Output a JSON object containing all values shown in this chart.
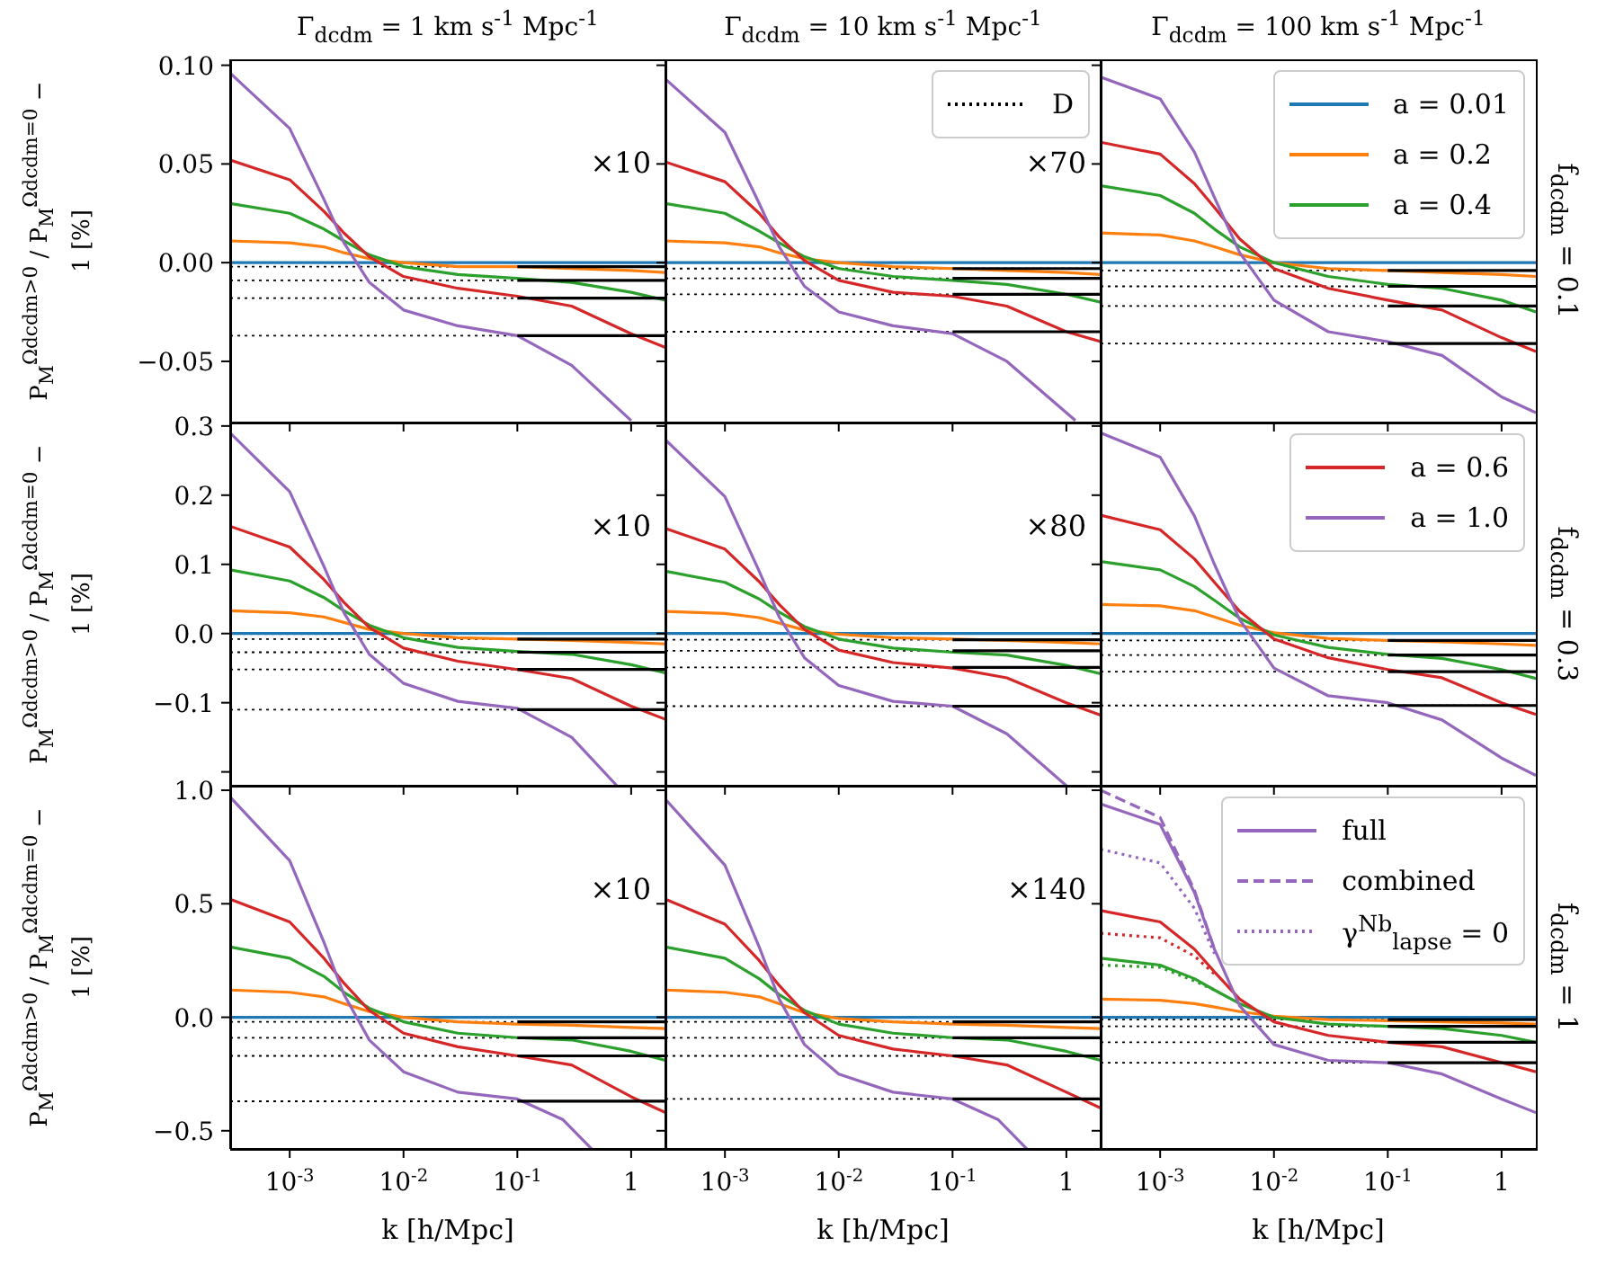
{
  "chart_data": [
    {
      "type": "line",
      "title": "Γ$_{dcdm}$ = 1 km s$^{-1}$ Mpc$^{-1}$",
      "ylabel": "P$_{M}$$^{Ωdcdm>0}$ / P$_{M}$$^{Ωdcdm=0}$ − 1 [%]",
      "log": "x",
      "marker": "none",
      "tick_labels": "y",
      "annotations": [
        "×10"
      ],
      "xlim": [
        0.0003,
        2
      ],
      "xticks": [
        {
          "value": 0.001,
          "label": null
        },
        {
          "value": 0.01,
          "label": null
        },
        {
          "value": 0.1,
          "label": null
        },
        {
          "value": 1,
          "label": null
        }
      ],
      "ylim": [
        -0.081,
        0.103
      ],
      "yticks": [
        {
          "value": -0.05,
          "label": "−0.05"
        },
        {
          "value": 0,
          "label": "0.00"
        },
        {
          "value": 0.05,
          "label": "0.05"
        },
        {
          "value": 0.1,
          "label": "0.10"
        }
      ],
      "x": [
        0.0003,
        0.001,
        0.002,
        0.003,
        0.005,
        0.01,
        0.03,
        0.1,
        0.3,
        1,
        2
      ],
      "series": [
        {
          "color": "#1f77b4",
          "values": [
            0,
            0,
            0,
            0,
            0,
            0,
            0,
            0,
            0,
            0,
            0
          ]
        },
        {
          "color": "#ff7f0e",
          "values": [
            0.011,
            0.01,
            0.008,
            0.005,
            0.002,
            0,
            -0.002,
            -0.002,
            -0.003,
            -0.004,
            -0.005
          ]
        },
        {
          "color": "#2ca02c",
          "values": [
            0.03,
            0.025,
            0.017,
            0.011,
            0.004,
            -0.002,
            -0.006,
            -0.008,
            -0.01,
            -0.015,
            -0.019
          ]
        },
        {
          "color": "#d62728",
          "values": [
            0.052,
            0.042,
            0.026,
            0.015,
            0.003,
            -0.007,
            -0.013,
            -0.017,
            -0.022,
            -0.036,
            -0.043
          ]
        },
        {
          "color": "#9467bd",
          "x": [
            0.0003,
            0.001,
            0.002,
            0.003,
            0.005,
            0.01,
            0.03,
            0.1,
            0.3,
            1
          ],
          "values": [
            0.096,
            0.068,
            0.032,
            0.01,
            -0.01,
            -0.024,
            -0.032,
            -0.037,
            -0.052,
            -0.08
          ]
        },
        {
          "color": "#000000",
          "x": [
            0.1,
            2
          ],
          "values": [
            -0.002,
            -0.002
          ]
        },
        {
          "color": "#000000",
          "x": [
            0.1,
            2
          ],
          "values": [
            -0.009,
            -0.009
          ]
        },
        {
          "color": "#000000",
          "x": [
            0.1,
            2
          ],
          "values": [
            -0.018,
            -0.018
          ]
        },
        {
          "color": "#000000",
          "x": [
            0.1,
            2
          ],
          "values": [
            -0.037,
            -0.037
          ]
        }
      ],
      "ref_lines": [
        {
          "axis": "y",
          "value": -0.002,
          "color": "#000000",
          "line_style": "dotted"
        },
        {
          "axis": "y",
          "value": -0.009,
          "color": "#000000",
          "line_style": "dotted"
        },
        {
          "axis": "y",
          "value": -0.018,
          "color": "#000000",
          "line_style": "dotted"
        },
        {
          "axis": "y",
          "value": -0.037,
          "color": "#000000",
          "line_style": "dotted"
        }
      ]
    },
    {
      "type": "line",
      "title": "Γ$_{dcdm}$ = 10 km s$^{-1}$ Mpc$^{-1}$",
      "log": "x",
      "marker": "none",
      "tick_labels": false,
      "annotations": [
        "×70"
      ],
      "legend": "top right",
      "xlim": [
        0.0003,
        2
      ],
      "xticks": [
        {
          "value": 0.001,
          "label": null
        },
        {
          "value": 0.01,
          "label": null
        },
        {
          "value": 0.1,
          "label": null
        },
        {
          "value": 1,
          "label": null
        }
      ],
      "ylim": [
        -0.081,
        0.103
      ],
      "yticks": [
        {
          "value": -0.05,
          "label": null
        },
        {
          "value": 0,
          "label": null
        },
        {
          "value": 0.05,
          "label": null
        },
        {
          "value": 0.1,
          "label": null
        }
      ],
      "x": [
        0.0003,
        0.001,
        0.002,
        0.003,
        0.005,
        0.01,
        0.03,
        0.1,
        0.3,
        1,
        2
      ],
      "series": [
        {
          "color": "#1f77b4",
          "values": [
            0,
            0,
            0,
            0,
            0,
            0,
            0,
            0,
            0,
            0,
            0
          ]
        },
        {
          "color": "#ff7f0e",
          "values": [
            0.011,
            0.01,
            0.008,
            0.005,
            0.002,
            0,
            -0.002,
            -0.003,
            -0.004,
            -0.005,
            -0.006
          ]
        },
        {
          "color": "#2ca02c",
          "values": [
            0.03,
            0.025,
            0.016,
            0.01,
            0.003,
            -0.003,
            -0.007,
            -0.009,
            -0.011,
            -0.016,
            -0.02
          ]
        },
        {
          "color": "#d62728",
          "values": [
            0.051,
            0.041,
            0.025,
            0.013,
            0.001,
            -0.009,
            -0.015,
            -0.017,
            -0.022,
            -0.035,
            -0.04
          ]
        },
        {
          "color": "#9467bd",
          "x": [
            0.0003,
            0.001,
            0.002,
            0.003,
            0.005,
            0.01,
            0.03,
            0.1,
            0.3,
            1.2
          ],
          "values": [
            0.093,
            0.066,
            0.03,
            0.008,
            -0.012,
            -0.025,
            -0.032,
            -0.036,
            -0.05,
            -0.08
          ]
        },
        {
          "color": "#000000",
          "x": [
            0.1,
            2
          ],
          "values": [
            -0.003,
            -0.003
          ]
        },
        {
          "color": "#000000",
          "x": [
            0.1,
            2
          ],
          "values": [
            -0.008,
            -0.008
          ]
        },
        {
          "color": "#000000",
          "x": [
            0.1,
            2
          ],
          "values": [
            -0.016,
            -0.016
          ]
        },
        {
          "color": "#000000",
          "x": [
            0.1,
            2
          ],
          "values": [
            -0.035,
            -0.035
          ]
        }
      ],
      "ref_lines": [
        {
          "axis": "y",
          "value": -0.003,
          "color": "#000000",
          "line_style": "dotted",
          "label": "D"
        },
        {
          "axis": "y",
          "value": -0.008,
          "color": "#000000",
          "line_style": "dotted"
        },
        {
          "axis": "y",
          "value": -0.016,
          "color": "#000000",
          "line_style": "dotted"
        },
        {
          "axis": "y",
          "value": -0.035,
          "color": "#000000",
          "line_style": "dotted"
        }
      ]
    },
    {
      "type": "line",
      "title": "Γ$_{dcdm}$ = 100 km s$^{-1}$ Mpc$^{-1}$",
      "y2label": "f$_{dcdm}$ = 0.1",
      "log": "x",
      "marker": "none",
      "tick_labels": false,
      "legend": "top right",
      "xlim": [
        0.0003,
        2
      ],
      "xticks": [
        {
          "value": 0.001,
          "label": null
        },
        {
          "value": 0.01,
          "label": null
        },
        {
          "value": 0.1,
          "label": null
        },
        {
          "value": 1,
          "label": null
        }
      ],
      "ylim": [
        -0.081,
        0.103
      ],
      "yticks": [
        {
          "value": -0.05,
          "label": null
        },
        {
          "value": 0,
          "label": null
        },
        {
          "value": 0.05,
          "label": null
        },
        {
          "value": 0.1,
          "label": null
        }
      ],
      "x": [
        0.0003,
        0.001,
        0.002,
        0.003,
        0.005,
        0.01,
        0.03,
        0.1,
        0.3,
        1,
        2
      ],
      "series": [
        {
          "name": "a = 0.01",
          "color": "#1f77b4",
          "values": [
            0,
            0,
            0,
            0,
            0,
            0,
            0,
            0,
            0,
            0,
            0
          ]
        },
        {
          "name": "a = 0.2",
          "color": "#ff7f0e",
          "values": [
            0.015,
            0.014,
            0.011,
            0.008,
            0.004,
            0,
            -0.003,
            -0.004,
            -0.005,
            -0.006,
            -0.007
          ]
        },
        {
          "name": "a = 0.4",
          "color": "#2ca02c",
          "values": [
            0.039,
            0.034,
            0.025,
            0.017,
            0.008,
            0,
            -0.007,
            -0.011,
            -0.013,
            -0.019,
            -0.025
          ]
        },
        {
          "color": "#d62728",
          "values": [
            0.061,
            0.055,
            0.04,
            0.028,
            0.012,
            -0.003,
            -0.013,
            -0.019,
            -0.024,
            -0.038,
            -0.045
          ]
        },
        {
          "color": "#9467bd",
          "values": [
            0.094,
            0.083,
            0.056,
            0.033,
            0.005,
            -0.019,
            -0.035,
            -0.04,
            -0.047,
            -0.068,
            -0.076
          ]
        },
        {
          "color": "#000000",
          "x": [
            0.1,
            2
          ],
          "values": [
            -0.004,
            -0.004
          ]
        },
        {
          "color": "#000000",
          "x": [
            0.1,
            2
          ],
          "values": [
            -0.012,
            -0.012
          ]
        },
        {
          "color": "#000000",
          "x": [
            0.1,
            2
          ],
          "values": [
            -0.022,
            -0.022
          ]
        },
        {
          "color": "#000000",
          "x": [
            0.1,
            2
          ],
          "values": [
            -0.041,
            -0.041
          ]
        }
      ],
      "ref_lines": [
        {
          "axis": "y",
          "value": -0.004,
          "color": "#000000",
          "line_style": "dotted"
        },
        {
          "axis": "y",
          "value": -0.012,
          "color": "#000000",
          "line_style": "dotted"
        },
        {
          "axis": "y",
          "value": -0.022,
          "color": "#000000",
          "line_style": "dotted"
        },
        {
          "axis": "y",
          "value": -0.041,
          "color": "#000000",
          "line_style": "dotted"
        }
      ]
    },
    {
      "type": "line",
      "ylabel": "P$_{M}$$^{Ωdcdm>0}$ / P$_{M}$$^{Ωdcdm=0}$ − 1 [%]",
      "log": "x",
      "marker": "none",
      "tick_labels": "y",
      "annotations": [
        "×10"
      ],
      "xlim": [
        0.0003,
        2
      ],
      "xticks": [
        {
          "value": 0.001,
          "label": null
        },
        {
          "value": 0.01,
          "label": null
        },
        {
          "value": 0.1,
          "label": null
        },
        {
          "value": 1,
          "label": null
        }
      ],
      "ylim": [
        -0.22,
        0.305
      ],
      "yticks": [
        {
          "value": -0.2,
          "label": null
        },
        {
          "value": -0.1,
          "label": "−0.1"
        },
        {
          "value": 0,
          "label": "0.0"
        },
        {
          "value": 0.1,
          "label": "0.1"
        },
        {
          "value": 0.2,
          "label": "0.2"
        },
        {
          "value": 0.3,
          "label": "0.3"
        }
      ],
      "x": [
        0.0003,
        0.001,
        0.002,
        0.003,
        0.005,
        0.01,
        0.03,
        0.1,
        0.3,
        1,
        2
      ],
      "series": [
        {
          "color": "#1f77b4",
          "values": [
            0,
            0,
            0,
            0,
            0,
            0,
            0,
            0,
            0,
            0,
            0
          ]
        },
        {
          "color": "#ff7f0e",
          "values": [
            0.033,
            0.03,
            0.024,
            0.016,
            0.006,
            0,
            -0.006,
            -0.008,
            -0.01,
            -0.013,
            -0.015
          ]
        },
        {
          "color": "#2ca02c",
          "values": [
            0.092,
            0.076,
            0.052,
            0.033,
            0.012,
            -0.006,
            -0.02,
            -0.026,
            -0.03,
            -0.045,
            -0.057
          ]
        },
        {
          "color": "#d62728",
          "values": [
            0.155,
            0.125,
            0.078,
            0.045,
            0.009,
            -0.021,
            -0.04,
            -0.052,
            -0.065,
            -0.105,
            -0.124
          ]
        },
        {
          "color": "#9467bd",
          "x": [
            0.0003,
            0.001,
            0.002,
            0.003,
            0.005,
            0.01,
            0.03,
            0.1,
            0.3,
            0.75
          ],
          "values": [
            0.29,
            0.205,
            0.097,
            0.03,
            -0.03,
            -0.072,
            -0.098,
            -0.108,
            -0.15,
            -0.22
          ]
        },
        {
          "color": "#000000",
          "x": [
            0.1,
            2
          ],
          "values": [
            -0.008,
            -0.008
          ]
        },
        {
          "color": "#000000",
          "x": [
            0.1,
            2
          ],
          "values": [
            -0.027,
            -0.027
          ]
        },
        {
          "color": "#000000",
          "x": [
            0.1,
            2
          ],
          "values": [
            -0.052,
            -0.052
          ]
        },
        {
          "color": "#000000",
          "x": [
            0.1,
            2
          ],
          "values": [
            -0.11,
            -0.11
          ]
        }
      ],
      "ref_lines": [
        {
          "axis": "y",
          "value": -0.008,
          "color": "#000000",
          "line_style": "dotted"
        },
        {
          "axis": "y",
          "value": -0.027,
          "color": "#000000",
          "line_style": "dotted"
        },
        {
          "axis": "y",
          "value": -0.052,
          "color": "#000000",
          "line_style": "dotted"
        },
        {
          "axis": "y",
          "value": -0.11,
          "color": "#000000",
          "line_style": "dotted"
        }
      ]
    },
    {
      "type": "line",
      "log": "x",
      "marker": "none",
      "tick_labels": false,
      "annotations": [
        "×80"
      ],
      "xlim": [
        0.0003,
        2
      ],
      "xticks": [
        {
          "value": 0.001,
          "label": null
        },
        {
          "value": 0.01,
          "label": null
        },
        {
          "value": 0.1,
          "label": null
        },
        {
          "value": 1,
          "label": null
        }
      ],
      "ylim": [
        -0.22,
        0.305
      ],
      "yticks": [
        {
          "value": -0.2,
          "label": null
        },
        {
          "value": -0.1,
          "label": null
        },
        {
          "value": 0,
          "label": null
        },
        {
          "value": 0.1,
          "label": null
        },
        {
          "value": 0.2,
          "label": null
        },
        {
          "value": 0.3,
          "label": null
        }
      ],
      "x": [
        0.0003,
        0.001,
        0.002,
        0.003,
        0.005,
        0.01,
        0.03,
        0.1,
        0.3,
        1,
        2
      ],
      "series": [
        {
          "color": "#1f77b4",
          "values": [
            0,
            0,
            0,
            0,
            0,
            0,
            0,
            0,
            0,
            0,
            0
          ]
        },
        {
          "color": "#ff7f0e",
          "values": [
            0.032,
            0.029,
            0.023,
            0.015,
            0.005,
            -0.001,
            -0.006,
            -0.008,
            -0.01,
            -0.013,
            -0.015
          ]
        },
        {
          "color": "#2ca02c",
          "values": [
            0.09,
            0.074,
            0.05,
            0.031,
            0.01,
            -0.008,
            -0.021,
            -0.027,
            -0.031,
            -0.046,
            -0.058
          ]
        },
        {
          "color": "#d62728",
          "values": [
            0.152,
            0.122,
            0.075,
            0.042,
            0.006,
            -0.024,
            -0.042,
            -0.05,
            -0.064,
            -0.1,
            -0.118
          ]
        },
        {
          "color": "#9467bd",
          "x": [
            0.0003,
            0.001,
            0.002,
            0.003,
            0.005,
            0.01,
            0.03,
            0.1,
            0.3,
            1
          ],
          "values": [
            0.28,
            0.198,
            0.09,
            0.024,
            -0.035,
            -0.075,
            -0.098,
            -0.105,
            -0.145,
            -0.22
          ]
        },
        {
          "color": "#000000",
          "x": [
            0.1,
            2
          ],
          "values": [
            -0.009,
            -0.009
          ]
        },
        {
          "color": "#000000",
          "x": [
            0.1,
            2
          ],
          "values": [
            -0.025,
            -0.025
          ]
        },
        {
          "color": "#000000",
          "x": [
            0.1,
            2
          ],
          "values": [
            -0.049,
            -0.049
          ]
        },
        {
          "color": "#000000",
          "x": [
            0.1,
            2
          ],
          "values": [
            -0.105,
            -0.105
          ]
        }
      ],
      "ref_lines": [
        {
          "axis": "y",
          "value": -0.009,
          "color": "#000000",
          "line_style": "dotted"
        },
        {
          "axis": "y",
          "value": -0.025,
          "color": "#000000",
          "line_style": "dotted"
        },
        {
          "axis": "y",
          "value": -0.049,
          "color": "#000000",
          "line_style": "dotted"
        },
        {
          "axis": "y",
          "value": -0.105,
          "color": "#000000",
          "line_style": "dotted"
        }
      ]
    },
    {
      "type": "line",
      "y2label": "f$_{dcdm}$ = 0.3",
      "log": "x",
      "marker": "none",
      "tick_labels": false,
      "legend": "top right",
      "xlim": [
        0.0003,
        2
      ],
      "xticks": [
        {
          "value": 0.001,
          "label": null
        },
        {
          "value": 0.01,
          "label": null
        },
        {
          "value": 0.1,
          "label": null
        },
        {
          "value": 1,
          "label": null
        }
      ],
      "ylim": [
        -0.22,
        0.305
      ],
      "yticks": [
        {
          "value": -0.2,
          "label": null
        },
        {
          "value": -0.1,
          "label": null
        },
        {
          "value": 0,
          "label": null
        },
        {
          "value": 0.1,
          "label": null
        },
        {
          "value": 0.2,
          "label": null
        },
        {
          "value": 0.3,
          "label": null
        }
      ],
      "x": [
        0.0003,
        0.001,
        0.002,
        0.003,
        0.005,
        0.01,
        0.03,
        0.1,
        0.3,
        1,
        2
      ],
      "series": [
        {
          "color": "#1f77b4",
          "values": [
            0,
            0,
            0,
            0,
            0,
            0,
            0,
            0,
            0,
            0,
            0
          ]
        },
        {
          "color": "#ff7f0e",
          "values": [
            0.042,
            0.04,
            0.033,
            0.024,
            0.012,
            0.001,
            -0.007,
            -0.01,
            -0.012,
            -0.015,
            -0.017
          ]
        },
        {
          "color": "#2ca02c",
          "values": [
            0.104,
            0.092,
            0.068,
            0.048,
            0.022,
            -0.002,
            -0.02,
            -0.03,
            -0.036,
            -0.052,
            -0.065
          ]
        },
        {
          "name": "a = 0.6",
          "color": "#d62728",
          "values": [
            0.171,
            0.15,
            0.108,
            0.074,
            0.032,
            -0.008,
            -0.035,
            -0.052,
            -0.064,
            -0.1,
            -0.117
          ]
        },
        {
          "name": "a = 1.0",
          "color": "#9467bd",
          "values": [
            0.29,
            0.255,
            0.17,
            0.1,
            0.02,
            -0.05,
            -0.09,
            -0.1,
            -0.125,
            -0.18,
            -0.205
          ]
        },
        {
          "color": "#000000",
          "x": [
            0.1,
            2
          ],
          "values": [
            -0.01,
            -0.01
          ]
        },
        {
          "color": "#000000",
          "x": [
            0.1,
            2
          ],
          "values": [
            -0.031,
            -0.031
          ]
        },
        {
          "color": "#000000",
          "x": [
            0.1,
            2
          ],
          "values": [
            -0.055,
            -0.055
          ]
        },
        {
          "color": "#000000",
          "x": [
            0.1,
            2
          ],
          "values": [
            -0.104,
            -0.104
          ]
        }
      ],
      "ref_lines": [
        {
          "axis": "y",
          "value": -0.01,
          "color": "#000000",
          "line_style": "dotted"
        },
        {
          "axis": "y",
          "value": -0.031,
          "color": "#000000",
          "line_style": "dotted"
        },
        {
          "axis": "y",
          "value": -0.055,
          "color": "#000000",
          "line_style": "dotted"
        },
        {
          "axis": "y",
          "value": -0.104,
          "color": "#000000",
          "line_style": "dotted"
        }
      ]
    },
    {
      "type": "line",
      "ylabel": "P$_{M}$$^{Ωdcdm>0}$ / P$_{M}$$^{Ωdcdm=0}$ − 1 [%]",
      "xlabel": "k [h/Mpc]",
      "log": "x",
      "marker": "none",
      "annotations": [
        "×10"
      ],
      "xlim": [
        0.0003,
        2
      ],
      "xticks": [
        {
          "value": 0.001,
          "label": "10$^{-3}$"
        },
        {
          "value": 0.01,
          "label": "10$^{-2}$"
        },
        {
          "value": 0.1,
          "label": "10$^{-1}$"
        },
        {
          "value": 1,
          "label": "1"
        }
      ],
      "ylim": [
        -0.58,
        1.02
      ],
      "yticks": [
        {
          "value": -0.5,
          "label": "−0.5"
        },
        {
          "value": 0,
          "label": "0.0"
        },
        {
          "value": 0.5,
          "label": "0.5"
        },
        {
          "value": 1,
          "label": "1.0"
        }
      ],
      "x": [
        0.0003,
        0.001,
        0.002,
        0.003,
        0.005,
        0.01,
        0.03,
        0.1,
        0.3,
        1,
        2
      ],
      "series": [
        {
          "color": "#1f77b4",
          "values": [
            0,
            0,
            0,
            0,
            0,
            0,
            0,
            0,
            0,
            0,
            0
          ]
        },
        {
          "color": "#ff7f0e",
          "values": [
            0.12,
            0.11,
            0.09,
            0.06,
            0.025,
            0,
            -0.02,
            -0.03,
            -0.035,
            -0.045,
            -0.05
          ]
        },
        {
          "color": "#2ca02c",
          "values": [
            0.31,
            0.26,
            0.18,
            0.11,
            0.04,
            -0.02,
            -0.07,
            -0.09,
            -0.1,
            -0.15,
            -0.19
          ]
        },
        {
          "color": "#d62728",
          "values": [
            0.52,
            0.42,
            0.26,
            0.15,
            0.03,
            -0.07,
            -0.13,
            -0.17,
            -0.21,
            -0.35,
            -0.42
          ]
        },
        {
          "color": "#9467bd",
          "x": [
            0.0003,
            0.001,
            0.002,
            0.003,
            0.005,
            0.01,
            0.03,
            0.1,
            0.25,
            0.45
          ],
          "values": [
            0.97,
            0.69,
            0.33,
            0.1,
            -0.1,
            -0.24,
            -0.33,
            -0.36,
            -0.45,
            -0.58
          ]
        },
        {
          "color": "#000000",
          "x": [
            0.1,
            2
          ],
          "values": [
            -0.02,
            -0.02
          ]
        },
        {
          "color": "#000000",
          "x": [
            0.1,
            2
          ],
          "values": [
            -0.09,
            -0.09
          ]
        },
        {
          "color": "#000000",
          "x": [
            0.1,
            2
          ],
          "values": [
            -0.17,
            -0.17
          ]
        },
        {
          "color": "#000000",
          "x": [
            0.1,
            2
          ],
          "values": [
            -0.37,
            -0.37
          ]
        }
      ],
      "ref_lines": [
        {
          "axis": "y",
          "value": -0.02,
          "color": "#000000",
          "line_style": "dotted"
        },
        {
          "axis": "y",
          "value": -0.09,
          "color": "#000000",
          "line_style": "dotted"
        },
        {
          "axis": "y",
          "value": -0.17,
          "color": "#000000",
          "line_style": "dotted"
        },
        {
          "axis": "y",
          "value": -0.37,
          "color": "#000000",
          "line_style": "dotted"
        }
      ]
    },
    {
      "type": "line",
      "xlabel": "k [h/Mpc]",
      "log": "x",
      "marker": "none",
      "tick_labels": "x",
      "annotations": [
        "×140"
      ],
      "xlim": [
        0.0003,
        2
      ],
      "xticks": [
        {
          "value": 0.001,
          "label": "10$^{-3}$"
        },
        {
          "value": 0.01,
          "label": "10$^{-2}$"
        },
        {
          "value": 0.1,
          "label": "10$^{-1}$"
        },
        {
          "value": 1,
          "label": "1"
        }
      ],
      "ylim": [
        -0.58,
        1.02
      ],
      "yticks": [
        {
          "value": -0.5,
          "label": null
        },
        {
          "value": 0,
          "label": null
        },
        {
          "value": 0.5,
          "label": null
        },
        {
          "value": 1,
          "label": null
        }
      ],
      "x": [
        0.0003,
        0.001,
        0.002,
        0.003,
        0.005,
        0.01,
        0.03,
        0.1,
        0.3,
        1,
        2
      ],
      "series": [
        {
          "color": "#1f77b4",
          "values": [
            0,
            0,
            0,
            0,
            0,
            0,
            0,
            0,
            0,
            0,
            0
          ]
        },
        {
          "color": "#ff7f0e",
          "values": [
            0.12,
            0.11,
            0.09,
            0.06,
            0.02,
            -0.005,
            -0.02,
            -0.03,
            -0.035,
            -0.045,
            -0.05
          ]
        },
        {
          "color": "#2ca02c",
          "values": [
            0.31,
            0.26,
            0.17,
            0.1,
            0.03,
            -0.03,
            -0.07,
            -0.09,
            -0.1,
            -0.15,
            -0.19
          ]
        },
        {
          "color": "#d62728",
          "values": [
            0.52,
            0.41,
            0.25,
            0.14,
            0.02,
            -0.08,
            -0.14,
            -0.17,
            -0.21,
            -0.33,
            -0.4
          ]
        },
        {
          "color": "#9467bd",
          "x": [
            0.0003,
            0.001,
            0.002,
            0.003,
            0.005,
            0.01,
            0.03,
            0.1,
            0.25,
            0.45
          ],
          "values": [
            0.96,
            0.67,
            0.31,
            0.08,
            -0.12,
            -0.25,
            -0.33,
            -0.36,
            -0.45,
            -0.58
          ]
        },
        {
          "color": "#000000",
          "x": [
            0.1,
            2
          ],
          "values": [
            -0.02,
            -0.02
          ]
        },
        {
          "color": "#000000",
          "x": [
            0.1,
            2
          ],
          "values": [
            -0.09,
            -0.09
          ]
        },
        {
          "color": "#000000",
          "x": [
            0.1,
            2
          ],
          "values": [
            -0.17,
            -0.17
          ]
        },
        {
          "color": "#000000",
          "x": [
            0.1,
            2
          ],
          "values": [
            -0.36,
            -0.36
          ]
        }
      ],
      "ref_lines": [
        {
          "axis": "y",
          "value": -0.02,
          "color": "#000000",
          "line_style": "dotted"
        },
        {
          "axis": "y",
          "value": -0.09,
          "color": "#000000",
          "line_style": "dotted"
        },
        {
          "axis": "y",
          "value": -0.17,
          "color": "#000000",
          "line_style": "dotted"
        },
        {
          "axis": "y",
          "value": -0.36,
          "color": "#000000",
          "line_style": "dotted"
        }
      ]
    },
    {
      "type": "line",
      "xlabel": "k [h/Mpc]",
      "y2label": "f$_{dcdm}$ = 1",
      "log": "x",
      "marker": "none",
      "tick_labels": "x",
      "legend": "top right",
      "xlim": [
        0.0003,
        2
      ],
      "xticks": [
        {
          "value": 0.001,
          "label": "10$^{-3}$"
        },
        {
          "value": 0.01,
          "label": "10$^{-2}$"
        },
        {
          "value": 0.1,
          "label": "10$^{-1}$"
        },
        {
          "value": 1,
          "label": "1"
        }
      ],
      "ylim": [
        -0.58,
        1.02
      ],
      "yticks": [
        {
          "value": -0.5,
          "label": null
        },
        {
          "value": 0,
          "label": null
        },
        {
          "value": 0.5,
          "label": null
        },
        {
          "value": 1,
          "label": null
        }
      ],
      "x": [
        0.0003,
        0.001,
        0.002,
        0.003,
        0.005,
        0.01,
        0.03,
        0.1,
        0.3,
        1,
        2
      ],
      "series": [
        {
          "color": "#1f77b4",
          "values": [
            0,
            0,
            0,
            0,
            0,
            0,
            0,
            0,
            0,
            0,
            0
          ]
        },
        {
          "color": "#ff7f0e",
          "values": [
            0.08,
            0.075,
            0.06,
            0.045,
            0.025,
            0.005,
            -0.01,
            -0.015,
            -0.02,
            -0.025,
            -0.03
          ]
        },
        {
          "color": "#2ca02c",
          "values": [
            0.26,
            0.23,
            0.17,
            0.12,
            0.06,
            0,
            -0.03,
            -0.04,
            -0.05,
            -0.08,
            -0.11
          ]
        },
        {
          "color": "#d62728",
          "values": [
            0.47,
            0.42,
            0.3,
            0.2,
            0.08,
            -0.02,
            -0.08,
            -0.11,
            -0.13,
            -0.2,
            -0.24
          ]
        },
        {
          "name": "full",
          "color": "#9467bd",
          "values": [
            0.94,
            0.85,
            0.55,
            0.3,
            0.05,
            -0.12,
            -0.19,
            -0.2,
            -0.25,
            -0.36,
            -0.42
          ]
        },
        {
          "name": "combined",
          "color": "#9467bd",
          "line_style": "dashed",
          "x": [
            0.0003,
            0.001,
            0.002,
            0.003
          ],
          "values": [
            1.0,
            0.88,
            0.56,
            0.3
          ]
        },
        {
          "name": "γ$^{Nb}$$_{lapse}$ = 0",
          "color": "#9467bd",
          "line_style": "dotted",
          "x": [
            0.0003,
            0.001,
            0.002,
            0.003
          ],
          "values": [
            0.74,
            0.68,
            0.48,
            0.28
          ]
        },
        {
          "color": "#d62728",
          "line_style": "dotted",
          "x": [
            0.0003,
            0.001,
            0.002,
            0.003
          ],
          "values": [
            0.37,
            0.35,
            0.27,
            0.19
          ]
        },
        {
          "color": "#2ca02c",
          "line_style": "dotted",
          "x": [
            0.0003,
            0.001,
            0.002,
            0.003
          ],
          "values": [
            0.23,
            0.22,
            0.16,
            0.12
          ]
        },
        {
          "color": "#000000",
          "x": [
            0.1,
            2
          ],
          "values": [
            -0.01,
            -0.01
          ]
        },
        {
          "color": "#000000",
          "x": [
            0.1,
            2
          ],
          "values": [
            -0.04,
            -0.04
          ]
        },
        {
          "color": "#000000",
          "x": [
            0.1,
            2
          ],
          "values": [
            -0.11,
            -0.11
          ]
        },
        {
          "color": "#000000",
          "x": [
            0.1,
            2
          ],
          "values": [
            -0.2,
            -0.2
          ]
        }
      ],
      "ref_lines": [
        {
          "axis": "y",
          "value": -0.01,
          "color": "#000000",
          "line_style": "dotted"
        },
        {
          "axis": "y",
          "value": -0.04,
          "color": "#000000",
          "line_style": "dotted"
        },
        {
          "axis": "y",
          "value": -0.11,
          "color": "#000000",
          "line_style": "dotted"
        },
        {
          "axis": "y",
          "value": -0.2,
          "color": "#000000",
          "line_style": "dotted"
        }
      ]
    }
  ]
}
